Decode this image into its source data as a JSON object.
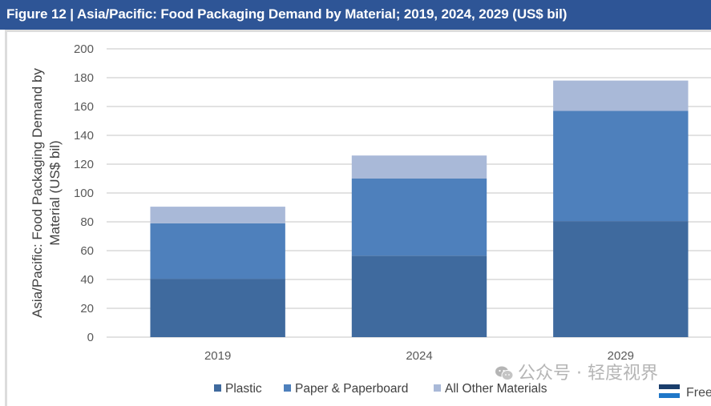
{
  "header": {
    "title": "Figure 12 | Asia/Pacific: Food Packaging Demand by Material; 2019, 2024, 2029 (US$ bil)"
  },
  "colors": {
    "header_bg": "#2e5596",
    "plastic": "#3f6a9e",
    "paper": "#4e80bc",
    "other": "#a9b9d8",
    "gridline": "#d9d9d9"
  },
  "watermark": {
    "text": "公众号 · 轻度视界",
    "icon": "wechat-icon"
  },
  "logo": {
    "text": "Free"
  },
  "chart_data": {
    "type": "bar",
    "stacked": true,
    "title": "Figure 12 | Asia/Pacific: Food Packaging Demand by Material; 2019, 2024, 2029 (US$ bil)",
    "xlabel": "",
    "ylabel": "Asia/Pacific: Food Packaging Demand by Material (US$ bil)",
    "ylabel_lines": [
      "Asia/Pacific: Food Packaging Demand by",
      "Material (US$ bil)"
    ],
    "categories": [
      "2019",
      "2024",
      "2029"
    ],
    "ylim": [
      0,
      200
    ],
    "yticks": [
      0,
      20,
      40,
      60,
      80,
      100,
      120,
      140,
      160,
      180,
      200
    ],
    "grid": true,
    "legend_position": "bottom",
    "series": [
      {
        "name": "Plastic",
        "color": "#3f6a9e",
        "values": [
          40.5,
          56.5,
          80.5
        ]
      },
      {
        "name": "Paper & Paperboard",
        "color": "#4e80bc",
        "values": [
          38.5,
          53.5,
          76.5
        ]
      },
      {
        "name": "All Other Materials",
        "color": "#a9b9d8",
        "values": [
          11.5,
          16.0,
          21.0
        ]
      }
    ]
  }
}
